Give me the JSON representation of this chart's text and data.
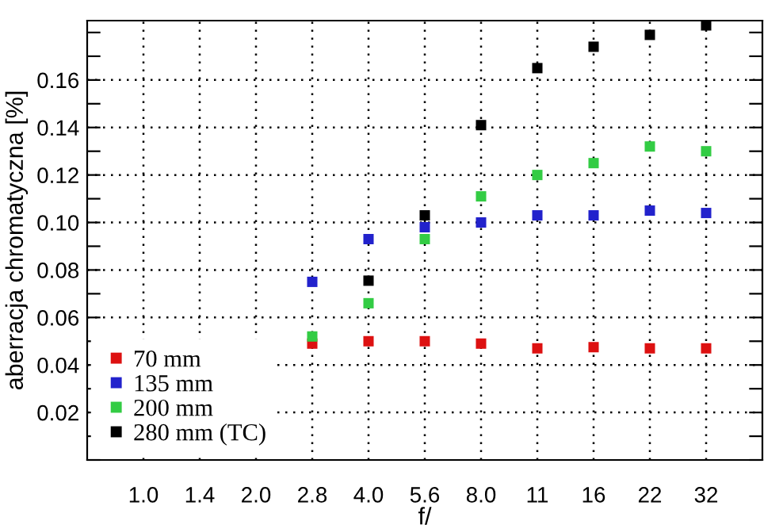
{
  "chart_data": {
    "type": "scatter",
    "xlabel": "f/",
    "ylabel": "aberracja chromatyczna [%]",
    "categories": [
      "1.0",
      "1.4",
      "2.0",
      "2.8",
      "4.0",
      "5.6",
      "8.0",
      "11",
      "16",
      "22",
      "32"
    ],
    "series": [
      {
        "name": "70 mm",
        "color": "#dd1111",
        "values": [
          null,
          null,
          null,
          0.049,
          0.05,
          0.05,
          0.049,
          0.047,
          0.0475,
          0.047,
          0.047
        ]
      },
      {
        "name": "135 mm",
        "color": "#2222cc",
        "values": [
          null,
          null,
          null,
          0.075,
          0.093,
          0.098,
          0.1,
          0.103,
          0.103,
          0.105,
          0.104
        ]
      },
      {
        "name": "200 mm",
        "color": "#33cc44",
        "values": [
          null,
          null,
          null,
          0.052,
          0.066,
          0.093,
          0.111,
          0.12,
          0.125,
          0.132,
          0.13
        ]
      },
      {
        "name": "280 mm (TC)",
        "color": "#000000",
        "values": [
          null,
          null,
          null,
          null,
          0.0755,
          0.103,
          0.141,
          0.165,
          0.174,
          0.179,
          0.183
        ]
      }
    ],
    "ylim": [
      0,
      0.185
    ],
    "yticks": [
      {
        "value": 0,
        "label": null
      },
      {
        "value": 0.01,
        "label": null
      },
      0.02,
      {
        "value": 0.03,
        "label": null
      },
      0.04,
      {
        "value": 0.05,
        "label": null
      },
      0.06,
      {
        "value": 0.07,
        "label": null
      },
      0.08,
      {
        "value": 0.09,
        "label": null
      },
      {
        "value": 0.1,
        "label": "0.10"
      },
      {
        "value": 0.11,
        "label": null
      },
      0.12,
      {
        "value": 0.13,
        "label": null
      },
      0.14,
      {
        "value": 0.15,
        "label": null
      },
      0.16,
      {
        "value": 0.17,
        "label": null
      },
      {
        "value": 0.18,
        "label": null
      }
    ],
    "grid": true,
    "legend": "bottom left",
    "marker": "square"
  }
}
